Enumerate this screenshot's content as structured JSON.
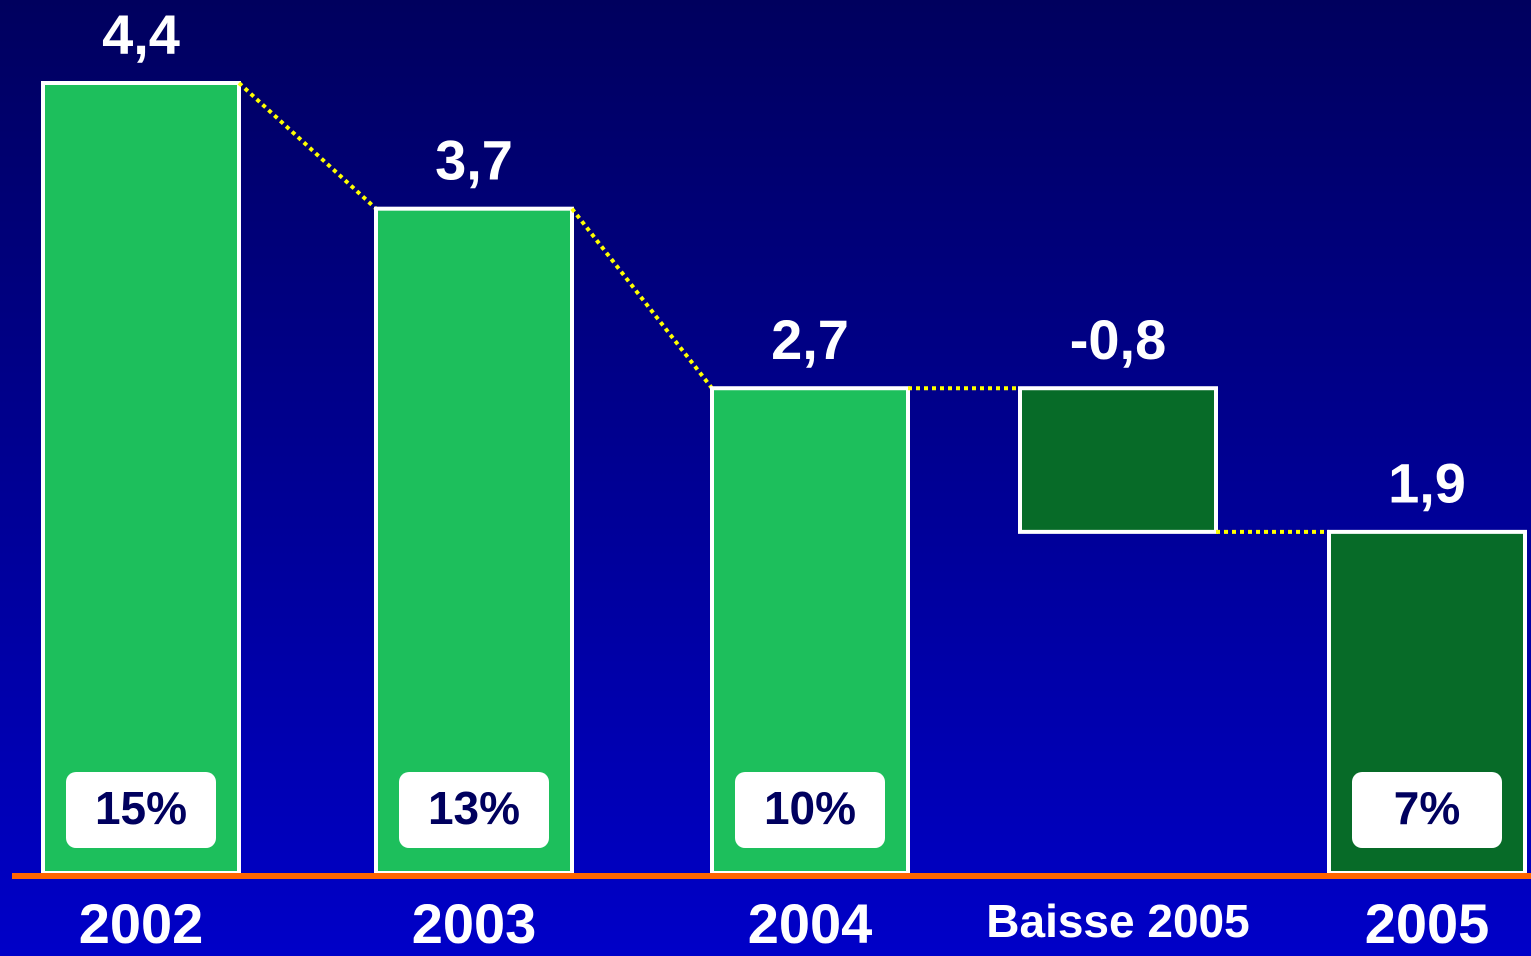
{
  "chart_data": {
    "type": "waterfall",
    "categories": [
      "2002",
      "2003",
      "2004",
      "Baisse 2005",
      "2005"
    ],
    "values": [
      4.4,
      3.7,
      2.7,
      -0.8,
      1.9
    ],
    "value_labels": [
      "4,4",
      "3,7",
      "2,7",
      "-0,8",
      "1,9"
    ],
    "percentages": [
      15,
      13,
      10,
      null,
      7
    ],
    "percentage_labels": [
      "15%",
      "13%",
      "10%",
      null,
      "7%"
    ],
    "colors": [
      "#1dbf5c",
      "#1dbf5c",
      "#1dbf5c",
      "#076b28",
      "#076b28"
    ]
  }
}
